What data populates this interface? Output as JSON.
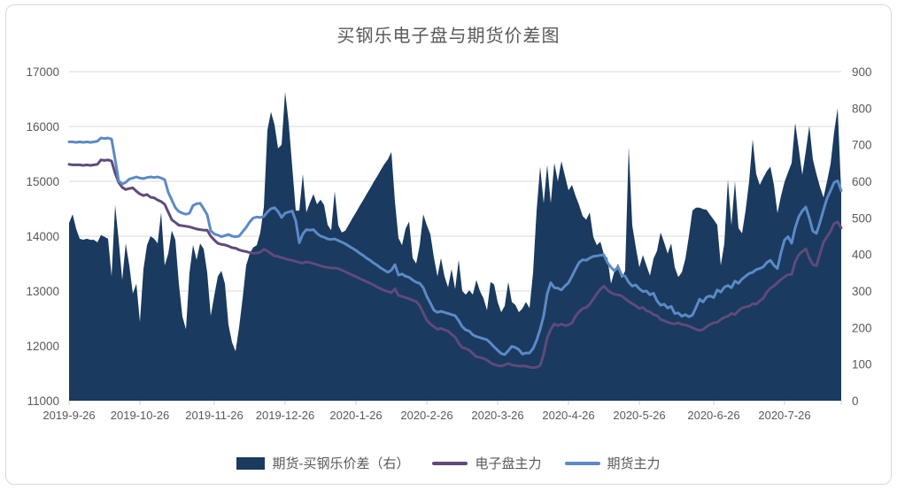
{
  "title": "买钢乐电子盘与期货价差图",
  "colors": {
    "spread_area": "#1a3a5f",
    "electronic_line": "#5f4a7b",
    "futures_line": "#5b8ac6",
    "gridline": "#d9d9d9",
    "axis_line": "#cfcfcf",
    "axis_text": "#595959",
    "frame_border": "#d9d9d9",
    "background": "#ffffff"
  },
  "legend": [
    {
      "label": "期货-买钢乐价差（右）",
      "type": "area",
      "color": "#1a3a5f"
    },
    {
      "label": "电子盘主力",
      "type": "line",
      "color": "#5f4a7b"
    },
    {
      "label": "期货主力",
      "type": "line",
      "color": "#5b8ac6"
    }
  ],
  "chart_data": {
    "type": "area+line combo (daily prices, dual axis)",
    "title": "买钢乐电子盘与期货价差图",
    "grid": "horizontal only",
    "legend_position": "bottom",
    "x_tick_labels": [
      "2019-9-26",
      "2019-10-26",
      "2019-11-26",
      "2019-12-26",
      "2020-1-26",
      "2020-2-26",
      "2020-3-26",
      "2020-4-26",
      "2020-5-26",
      "2020-6-26",
      "2020-7-26"
    ],
    "x_tick_indices": [
      0,
      20,
      41,
      61,
      81,
      101,
      121,
      141,
      161,
      182,
      202
    ],
    "left_axis": {
      "min": 11000,
      "max": 17000,
      "step": 1000,
      "tick_labels": [
        "11000",
        "12000",
        "13000",
        "14000",
        "15000",
        "16000",
        "17000"
      ]
    },
    "right_axis": {
      "min": 0,
      "max": 900,
      "step": 100,
      "tick_labels": [
        "0",
        "100",
        "200",
        "300",
        "400",
        "500",
        "600",
        "700",
        "800",
        "900"
      ]
    },
    "series": [
      {
        "name": "期货-买钢乐价差（右）",
        "type": "area",
        "axis": "right",
        "color": "#1a3a5f",
        "values": [
          486,
          510,
          470,
          443,
          440,
          443,
          440,
          440,
          433,
          453,
          448,
          443,
          340,
          535,
          440,
          330,
          430,
          370,
          293,
          320,
          215,
          360,
          425,
          450,
          443,
          430,
          515,
          370,
          402,
          465,
          440,
          320,
          230,
          195,
          350,
          426,
          385,
          430,
          415,
          350,
          232,
          288,
          340,
          355,
          320,
          208,
          160,
          135,
          200,
          280,
          370,
          402,
          419,
          425,
          460,
          530,
          740,
          790,
          755,
          690,
          700,
          845,
          760,
          640,
          520,
          520,
          620,
          515,
          542,
          565,
          537,
          550,
          535,
          481,
          466,
          573,
          480,
          460,
          465,
          482,
          499,
          515,
          532,
          548,
          565,
          581,
          598,
          614,
          631,
          647,
          660,
          680,
          545,
          445,
          425,
          470,
          490,
          390,
          375,
          425,
          510,
          480,
          455,
          392,
          340,
          390,
          340,
          310,
          360,
          305,
          385,
          300,
          290,
          302,
          290,
          330,
          300,
          280,
          247,
          325,
          318,
          270,
          242,
          259,
          325,
          270,
          262,
          242,
          252,
          270,
          253,
          350,
          520,
          640,
          540,
          645,
          540,
          650,
          600,
          655,
          615,
          575,
          590,
          560,
          535,
          505,
          495,
          515,
          448,
          425,
          435,
          400,
          390,
          320,
          355,
          375,
          335,
          355,
          695,
          480,
          420,
          365,
          398,
          370,
          342,
          388,
          410,
          460,
          433,
          402,
          430,
          365,
          338,
          351,
          388,
          450,
          520,
          528,
          528,
          524,
          522,
          508,
          495,
          481,
          370,
          430,
          605,
          480,
          600,
          472,
          458,
          520,
          600,
          715,
          620,
          590,
          610,
          628,
          640,
          590,
          513,
          560,
          598,
          625,
          650,
          760,
          690,
          618,
          682,
          752,
          660,
          620,
          585,
          556,
          600,
          648,
          735,
          800,
          570
        ]
      },
      {
        "name": "电子盘主力",
        "type": "line",
        "axis": "left",
        "color": "#5f4a7b",
        "values": [
          15310,
          15300,
          15300,
          15300,
          15290,
          15300,
          15290,
          15300,
          15310,
          15390,
          15380,
          15390,
          15370,
          15150,
          14980,
          14890,
          14850,
          14870,
          14880,
          14820,
          14770,
          14740,
          14760,
          14710,
          14700,
          14660,
          14630,
          14580,
          14440,
          14300,
          14250,
          14200,
          14190,
          14180,
          14170,
          14150,
          14130,
          14120,
          14110,
          14110,
          14000,
          13930,
          13870,
          13850,
          13840,
          13820,
          13790,
          13780,
          13750,
          13730,
          13720,
          13700,
          13690,
          13690,
          13710,
          13760,
          13730,
          13680,
          13640,
          13630,
          13610,
          13590,
          13570,
          13560,
          13540,
          13520,
          13510,
          13530,
          13520,
          13500,
          13480,
          13460,
          13440,
          13430,
          13420,
          13420,
          13410,
          13380,
          13350,
          13320,
          13290,
          13260,
          13230,
          13200,
          13170,
          13140,
          13110,
          13070,
          13040,
          13010,
          12990,
          12970,
          13040,
          12920,
          12900,
          12880,
          12860,
          12830,
          12810,
          12730,
          12600,
          12470,
          12400,
          12350,
          12300,
          12320,
          12290,
          12270,
          12210,
          12160,
          12050,
          11970,
          11950,
          11920,
          11860,
          11800,
          11790,
          11770,
          11740,
          11690,
          11660,
          11640,
          11630,
          11650,
          11680,
          11650,
          11640,
          11630,
          11630,
          11630,
          11610,
          11600,
          11610,
          11640,
          11850,
          12150,
          12300,
          12400,
          12370,
          12400,
          12370,
          12380,
          12420,
          12540,
          12620,
          12680,
          12700,
          12760,
          12850,
          12950,
          13030,
          13090,
          13020,
          12970,
          12940,
          12930,
          12910,
          12860,
          12810,
          12770,
          12730,
          12680,
          12700,
          12640,
          12620,
          12570,
          12550,
          12480,
          12460,
          12430,
          12410,
          12400,
          12420,
          12390,
          12380,
          12360,
          12330,
          12300,
          12280,
          12300,
          12350,
          12390,
          12420,
          12430,
          12480,
          12520,
          12540,
          12590,
          12570,
          12640,
          12690,
          12710,
          12720,
          12770,
          12760,
          12820,
          12870,
          12980,
          13050,
          13090,
          13150,
          13210,
          13260,
          13300,
          13300,
          13530,
          13660,
          13720,
          13770,
          13600,
          13480,
          13460,
          13680,
          13890,
          13990,
          14090,
          14230,
          14260,
          14150
        ]
      },
      {
        "name": "期货主力",
        "type": "line",
        "axis": "left",
        "color": "#5b8ac6",
        "values": [
          15720,
          15720,
          15710,
          15720,
          15710,
          15720,
          15710,
          15720,
          15730,
          15790,
          15780,
          15790,
          15770,
          15400,
          15010,
          14950,
          14980,
          15040,
          15060,
          15080,
          15060,
          15050,
          15070,
          15080,
          15070,
          15080,
          15060,
          15030,
          14800,
          14660,
          14520,
          14450,
          14420,
          14400,
          14420,
          14560,
          14590,
          14600,
          14500,
          14390,
          14100,
          14040,
          14020,
          13990,
          14010,
          14030,
          14000,
          13990,
          14000,
          14080,
          14160,
          14260,
          14330,
          14350,
          14340,
          14360,
          14440,
          14500,
          14520,
          14450,
          14340,
          14420,
          14440,
          14460,
          14280,
          13880,
          14040,
          14120,
          14110,
          14120,
          14050,
          14000,
          13980,
          13950,
          13940,
          13950,
          13920,
          13890,
          13860,
          13820,
          13780,
          13740,
          13690,
          13650,
          13600,
          13560,
          13510,
          13470,
          13420,
          13380,
          13340,
          13380,
          13480,
          13290,
          13310,
          13270,
          13250,
          13200,
          13160,
          13140,
          13060,
          12900,
          12780,
          12650,
          12610,
          12630,
          12610,
          12590,
          12570,
          12550,
          12460,
          12350,
          12290,
          12270,
          12200,
          12170,
          12150,
          12130,
          12110,
          12050,
          11980,
          11920,
          11860,
          11840,
          11910,
          11990,
          11970,
          11930,
          11850,
          11870,
          11870,
          11950,
          12100,
          12300,
          12550,
          12950,
          13150,
          13060,
          13050,
          13020,
          13090,
          13150,
          13270,
          13400,
          13520,
          13570,
          13560,
          13600,
          13630,
          13640,
          13650,
          13660,
          13520,
          13430,
          13370,
          13440,
          13290,
          13270,
          13160,
          13090,
          13110,
          13040,
          12990,
          13000,
          12930,
          12960,
          12820,
          12740,
          12760,
          12690,
          12720,
          12590,
          12600,
          12540,
          12570,
          12530,
          12560,
          12700,
          12850,
          12800,
          12890,
          12910,
          12880,
          13020,
          12980,
          13070,
          13100,
          13060,
          13180,
          13140,
          13220,
          13270,
          13320,
          13340,
          13390,
          13410,
          13440,
          13520,
          13560,
          13470,
          13410,
          13700,
          13930,
          13990,
          13870,
          14150,
          14350,
          14460,
          14530,
          14330,
          14090,
          14050,
          14250,
          14480,
          14690,
          14830,
          14980,
          15010,
          14830
        ]
      }
    ]
  }
}
